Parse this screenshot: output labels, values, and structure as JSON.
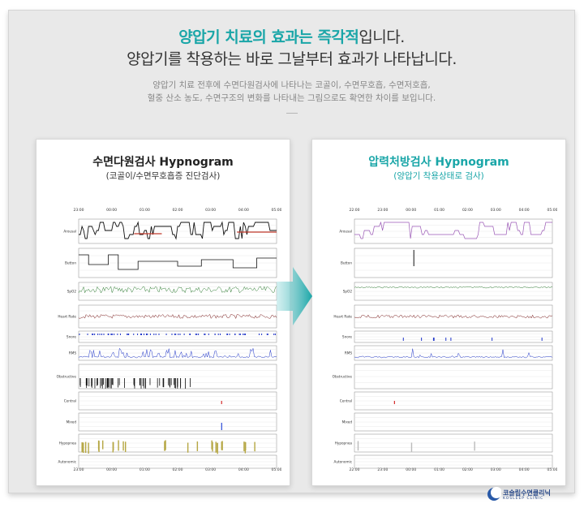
{
  "header": {
    "line1_highlight": "양압기 치료의 효과는 즉각적",
    "line1_rest": "입니다.",
    "line2": "양압기를 착용하는 바로 그날부터 효과가 나타납니다.",
    "desc1": "양압기 치료 전후에 수면다원검사에 나타나는 코골이, 수면무호흡, 수면저호흡,",
    "desc2": "혈중 산소 농도, 수면구조의 변화를 나타내는 그림으로도 확연한 차이를 보입니다."
  },
  "left_panel": {
    "title": "수면다원검사 Hypnogram",
    "subtitle": "(코골이/수면무호흡증 진단검사)",
    "time_ticks": [
      "23:00",
      "00:00",
      "01:00",
      "02:00",
      "03:00",
      "04:00",
      "05:00"
    ],
    "row_labels": [
      "Arousal",
      "Button",
      "SpO2",
      "Heart Rate",
      "Snore",
      "RMS",
      "Obstructive",
      "Central",
      "Mixed",
      "Hypopnea",
      "Autonomic"
    ]
  },
  "right_panel": {
    "title": "압력처방검사 Hypnogram",
    "subtitle": "(양압기 착용상태로 검사)",
    "time_ticks": [
      "22:00",
      "23:00",
      "00:00",
      "01:00",
      "02:00",
      "03:00",
      "04:00",
      "05:00"
    ],
    "row_labels": [
      "Arousal",
      "Button",
      "SpO2",
      "Heart Rate",
      "Snore",
      "RMS",
      "Obstructive",
      "Central",
      "Mixed",
      "Hypopnea",
      "Autonomic"
    ]
  },
  "colors": {
    "accent": "#1aa6a8",
    "hypno_left": "#c0392b",
    "hypno_right": "#9b59b6",
    "spo2": "#2e7d32",
    "heart": "#7b1a1a",
    "snore": "#1f35c9",
    "hypopnea": "#b5a642"
  },
  "logo": {
    "name": "코슬립수면클리닉",
    "sub": "KOSLEEP CLINIC"
  }
}
